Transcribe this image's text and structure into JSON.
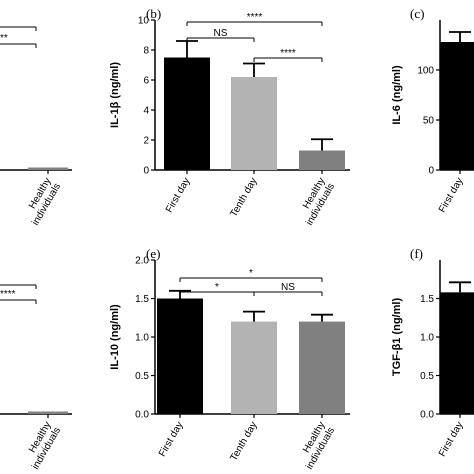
{
  "chart_data": [
    {
      "panel": "a",
      "type": "bar",
      "partial": true,
      "categories": [
        "Healthy individuals"
      ],
      "values": [
        0.3
      ],
      "annotations": [
        {
          "label": "**"
        }
      ]
    },
    {
      "panel": "b",
      "type": "bar",
      "categories": [
        "First day",
        "Tenth day",
        "Healthy individuals"
      ],
      "values": [
        7.5,
        6.2,
        1.3
      ],
      "errors": [
        1.1,
        0.9,
        0.75
      ],
      "ylabel": "IL-1β (ng/ml)",
      "ylim": [
        0,
        10
      ],
      "yticks": [
        "0",
        "2",
        "4",
        "6",
        "8",
        "10"
      ],
      "annotations": [
        {
          "label": "****",
          "from": 0,
          "to": 2,
          "level": 2
        },
        {
          "label": "NS",
          "from": 0,
          "to": 1,
          "level": 1
        },
        {
          "label": "****",
          "from": 1,
          "to": 2,
          "level": 0
        }
      ]
    },
    {
      "panel": "c",
      "type": "bar",
      "partial": true,
      "categories": [
        "First day"
      ],
      "values": [
        128
      ],
      "errors": [
        10
      ],
      "ylabel": "IL-6 (ng/ml)",
      "ylim": [
        0,
        150
      ],
      "yticks": [
        "0",
        "50",
        "100"
      ]
    },
    {
      "panel": "d",
      "type": "bar",
      "partial": true,
      "categories": [
        "Healthy individuals"
      ],
      "values": [
        0.02
      ],
      "annotations": [
        {
          "label": "****"
        }
      ]
    },
    {
      "panel": "e",
      "type": "bar",
      "categories": [
        "First day",
        "Tenth day",
        "Healthy individuals"
      ],
      "values": [
        1.5,
        1.2,
        1.2
      ],
      "errors": [
        0.1,
        0.13,
        0.09
      ],
      "ylabel": "IL-10 (ng/ml)",
      "ylim": [
        0,
        2.0
      ],
      "yticks": [
        "0.0",
        "0.5",
        "1.0",
        "1.5",
        "2.0"
      ],
      "annotations": [
        {
          "label": "*",
          "from": 0,
          "to": 2,
          "level": 1
        },
        {
          "label": "*",
          "from": 0,
          "to": 1,
          "level": 0
        },
        {
          "label": "NS",
          "from": 1,
          "to": 2,
          "level": 0
        }
      ]
    },
    {
      "panel": "f",
      "type": "bar",
      "partial": true,
      "categories": [
        "First day"
      ],
      "values": [
        1.58
      ],
      "errors": [
        0.13
      ],
      "ylabel": "TGF-β1 (ng/ml)",
      "ylim": [
        0,
        2.0
      ],
      "yticks": [
        "0.0",
        "0.5",
        "1.0",
        "1.5"
      ]
    }
  ],
  "panel_labels": {
    "b": "(b)",
    "c": "(c)",
    "e": "(e)",
    "f": "(f)"
  },
  "colors": {
    "first_day": "#000000",
    "tenth_day": "#b3b3b3",
    "healthy": "#808080",
    "axis": "#000000"
  }
}
